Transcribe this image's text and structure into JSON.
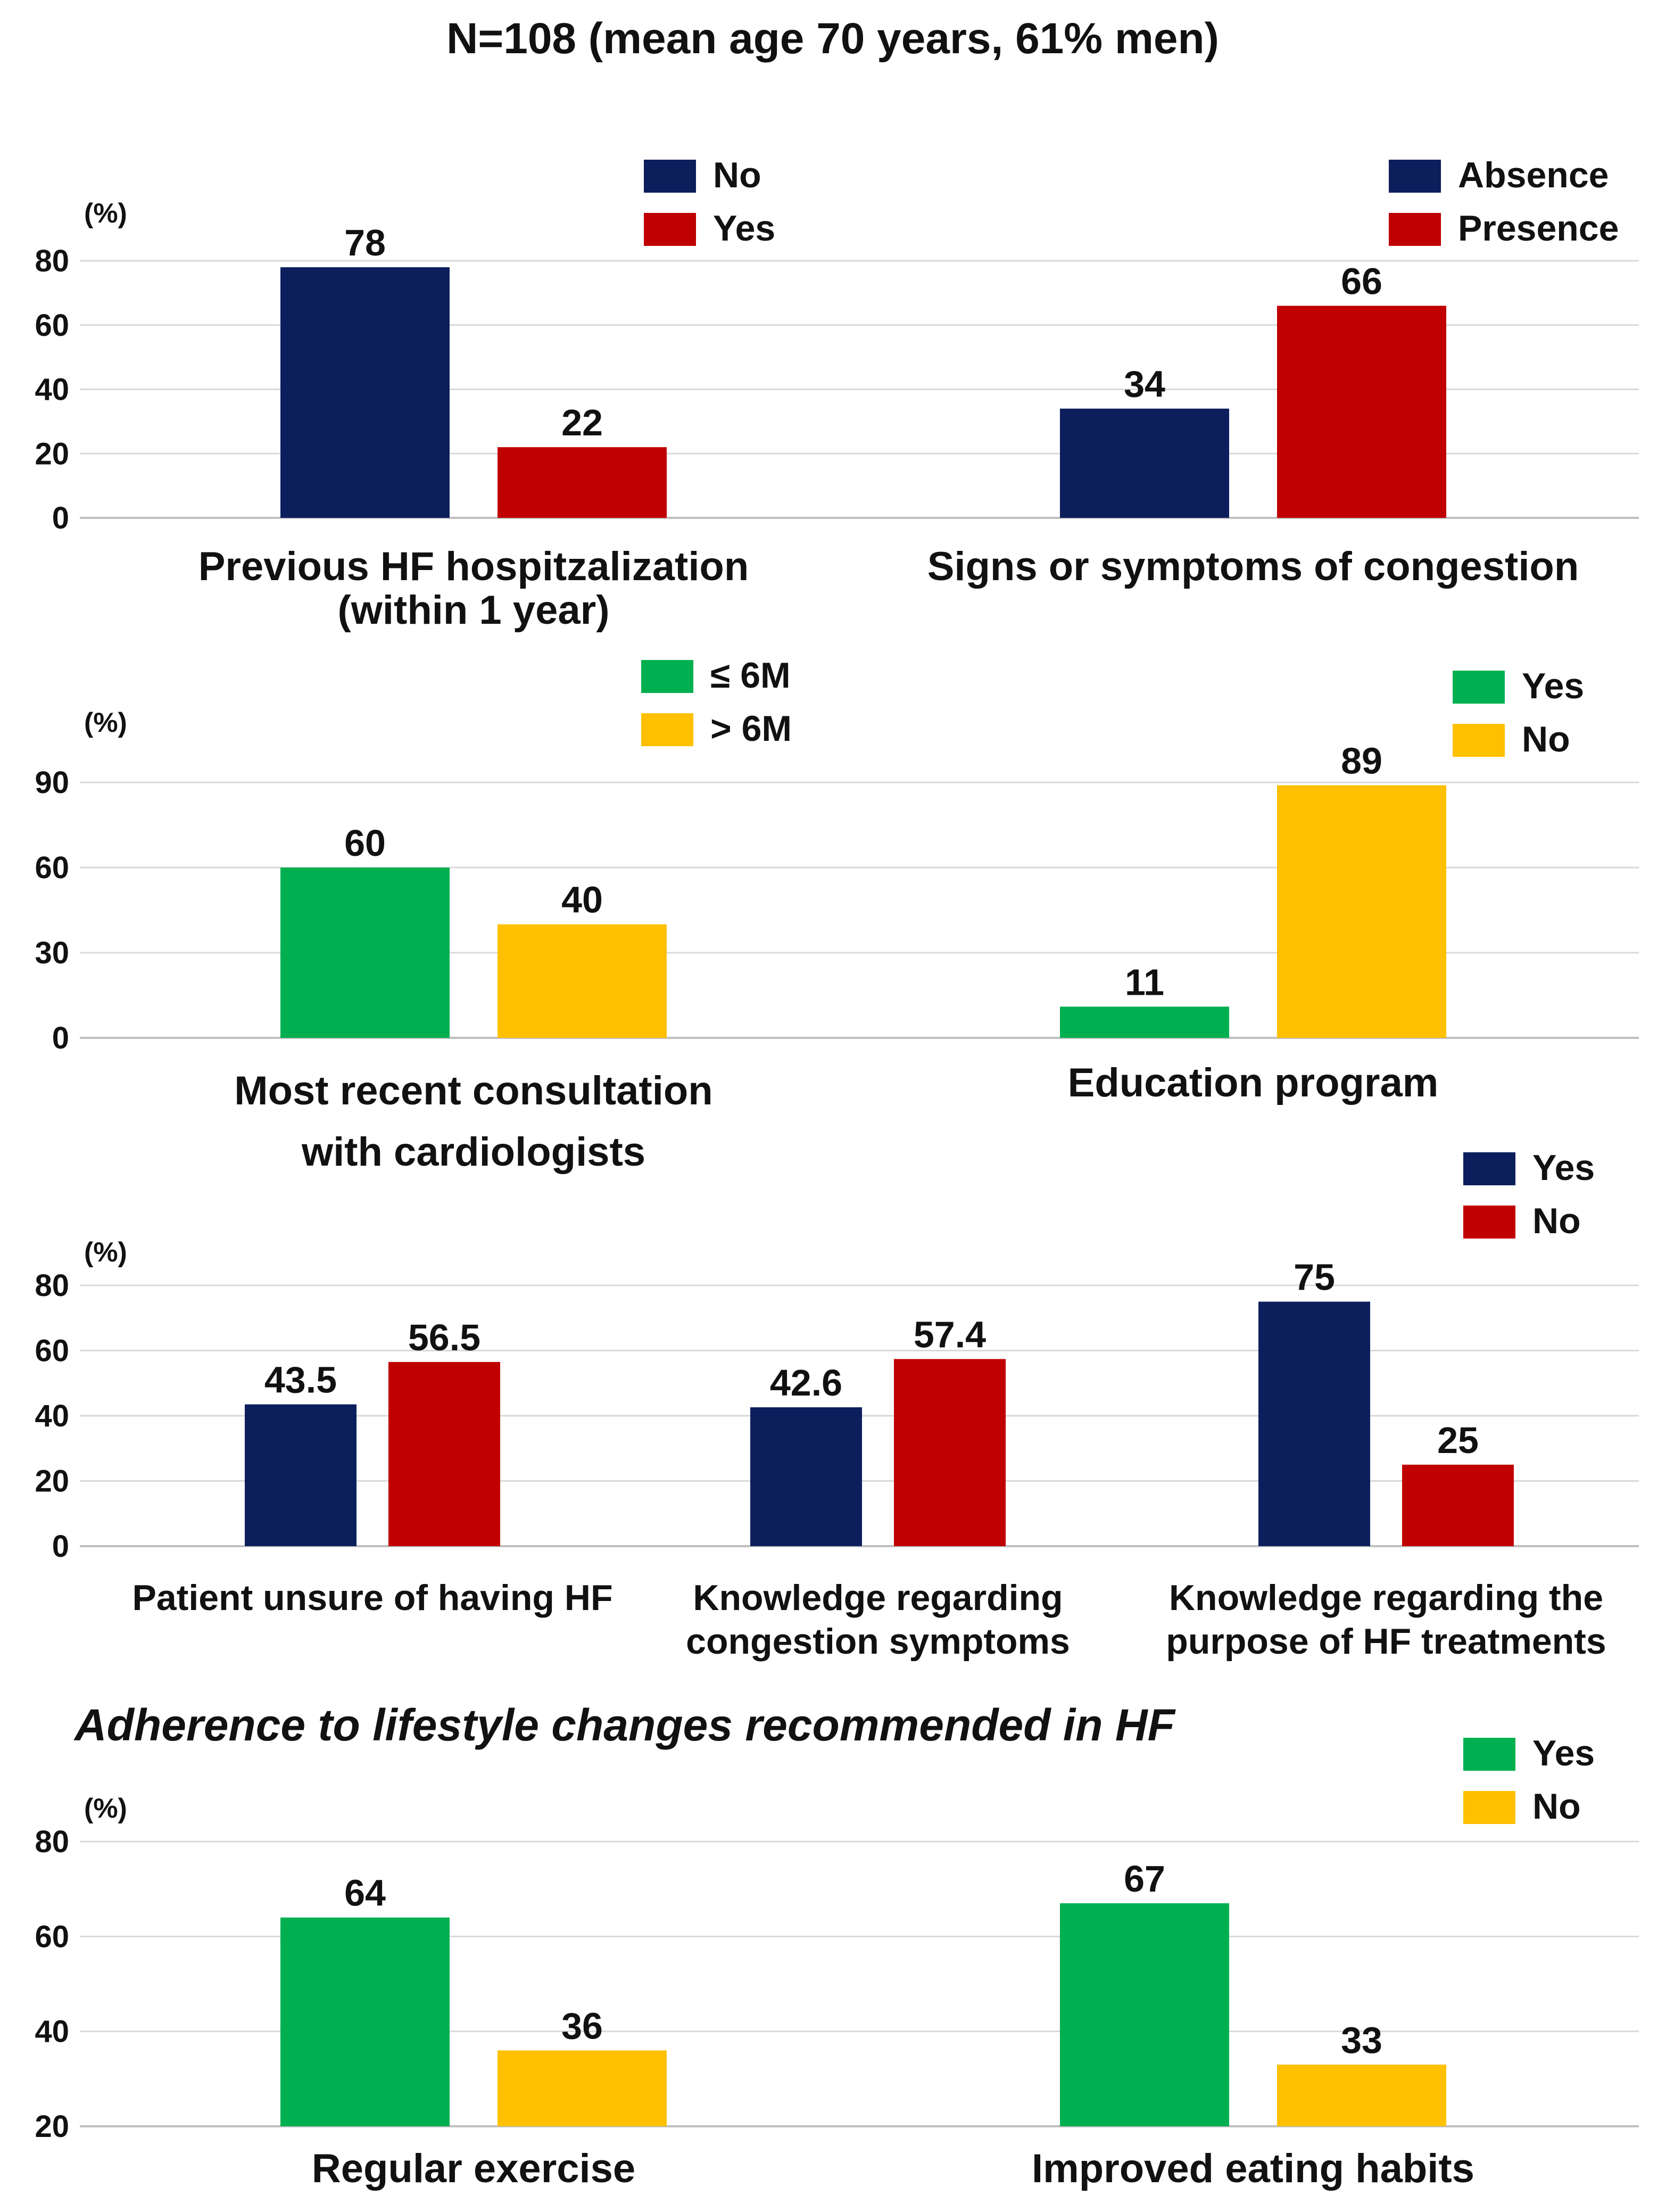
{
  "header": {
    "title": "N=108 (mean age 70 years, 61% men)"
  },
  "section": {
    "title": "Adherence to lifestyle changes recommended in HF"
  },
  "colors": {
    "navy": "#0c1f5c",
    "red": "#c00000",
    "green": "#00b050",
    "gold": "#ffc000",
    "grid": "#d9d9d9",
    "axis": "#bfbfbf"
  },
  "chart_data": [
    {
      "type": "bar",
      "unit_label": "(%)",
      "ylim": [
        0,
        80
      ],
      "yticks": [
        "0",
        "20",
        "40",
        "60",
        "80"
      ],
      "legend": [
        "No",
        "Yes"
      ],
      "groups": [
        {
          "label": [
            "Previous HF hospitzalization",
            "(within 1 year)"
          ],
          "values": [
            78,
            22
          ],
          "value_labels": [
            "78",
            "22"
          ]
        }
      ]
    },
    {
      "type": "bar",
      "ylim": [
        0,
        80
      ],
      "legend": [
        "Absence",
        "Presence"
      ],
      "groups": [
        {
          "label": [
            "Signs or symptoms of congestion"
          ],
          "values": [
            34,
            66
          ],
          "value_labels": [
            "34",
            "66"
          ]
        }
      ]
    },
    {
      "type": "bar",
      "unit_label": "(%)",
      "ylim": [
        0,
        90
      ],
      "yticks": [
        "0",
        "30",
        "60",
        "90"
      ],
      "legend": [
        "≤ 6M",
        "> 6M"
      ],
      "groups": [
        {
          "label": [
            "Most recent consultation",
            "with cardiologists"
          ],
          "values": [
            60,
            40
          ],
          "value_labels": [
            "60",
            "40"
          ]
        }
      ]
    },
    {
      "type": "bar",
      "ylim": [
        0,
        90
      ],
      "legend": [
        "Yes",
        "No"
      ],
      "groups": [
        {
          "label": [
            "Education  program"
          ],
          "values": [
            11,
            89
          ],
          "value_labels": [
            "11",
            "89"
          ]
        }
      ]
    },
    {
      "type": "bar",
      "unit_label": "(%)",
      "ylim": [
        0,
        80
      ],
      "yticks": [
        "0",
        "20",
        "40",
        "60",
        "80"
      ],
      "legend": [
        "Yes",
        "No"
      ],
      "groups": [
        {
          "label": [
            "Patient unsure of having HF"
          ],
          "values": [
            43.5,
            56.5
          ],
          "value_labels": [
            "43.5",
            "56.5"
          ]
        },
        {
          "label": [
            "Knowledge regarding",
            "congestion symptoms"
          ],
          "values": [
            42.6,
            57.4
          ],
          "value_labels": [
            "42.6",
            "57.4"
          ]
        },
        {
          "label": [
            "Knowledge regarding the",
            "purpose of HF treatments"
          ],
          "values": [
            75,
            25
          ],
          "value_labels": [
            "75",
            "25"
          ]
        }
      ]
    },
    {
      "type": "bar",
      "unit_label": "(%)",
      "ylim": [
        20,
        80
      ],
      "yticks": [
        "20",
        "40",
        "60",
        "80"
      ],
      "legend": [
        "Yes",
        "No"
      ],
      "groups": [
        {
          "label": [
            "Regular exercise"
          ],
          "values": [
            64,
            36
          ],
          "value_labels": [
            "64",
            "36"
          ]
        },
        {
          "label": [
            "Improved eating habits"
          ],
          "values": [
            67,
            33
          ],
          "value_labels": [
            "67",
            "33"
          ]
        }
      ]
    }
  ]
}
